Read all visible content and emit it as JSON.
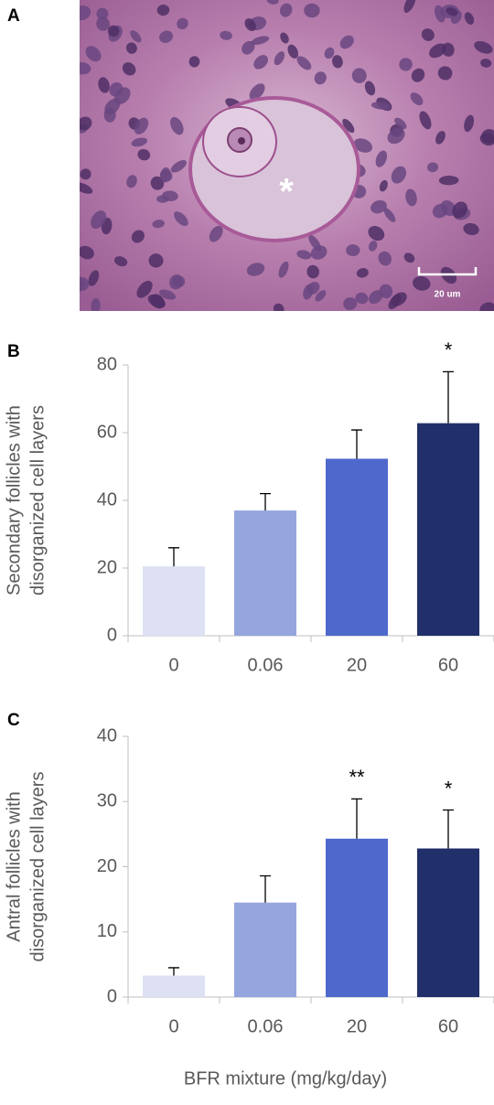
{
  "panel_labels": [
    "A",
    "B",
    "C"
  ],
  "image": {
    "marker": "*",
    "scale_bar": "20 um"
  },
  "chart_data": [
    {
      "type": "bar",
      "ylabel": [
        "Secondary follicles with",
        "disorganized cell layers"
      ],
      "categories": [
        "0",
        "0.06",
        "20",
        "60"
      ],
      "values": [
        20.5,
        37,
        52.3,
        62.8
      ],
      "errors": [
        5.5,
        5,
        8.5,
        15.2
      ],
      "significance": [
        null,
        null,
        null,
        "*"
      ],
      "colors": [
        "#dde1f3",
        "#95a5de",
        "#4f68cc",
        "#21306a"
      ],
      "ylim": [
        0,
        80
      ],
      "yticks": [
        0,
        20,
        40,
        60,
        80
      ]
    },
    {
      "type": "bar",
      "ylabel": [
        "Antral follicles with",
        "disorganized cell layers"
      ],
      "xlabel": "BFR mixture (mg/kg/day)",
      "categories": [
        "0",
        "0.06",
        "20",
        "60"
      ],
      "values": [
        3.3,
        14.5,
        24.3,
        22.8
      ],
      "errors": [
        1.2,
        4.1,
        6.1,
        5.9
      ],
      "significance": [
        null,
        null,
        "**",
        "*"
      ],
      "colors": [
        "#dde1f3",
        "#95a5de",
        "#4f68cc",
        "#21306a"
      ],
      "ylim": [
        0,
        40
      ],
      "yticks": [
        0,
        10,
        20,
        30,
        40
      ]
    }
  ]
}
